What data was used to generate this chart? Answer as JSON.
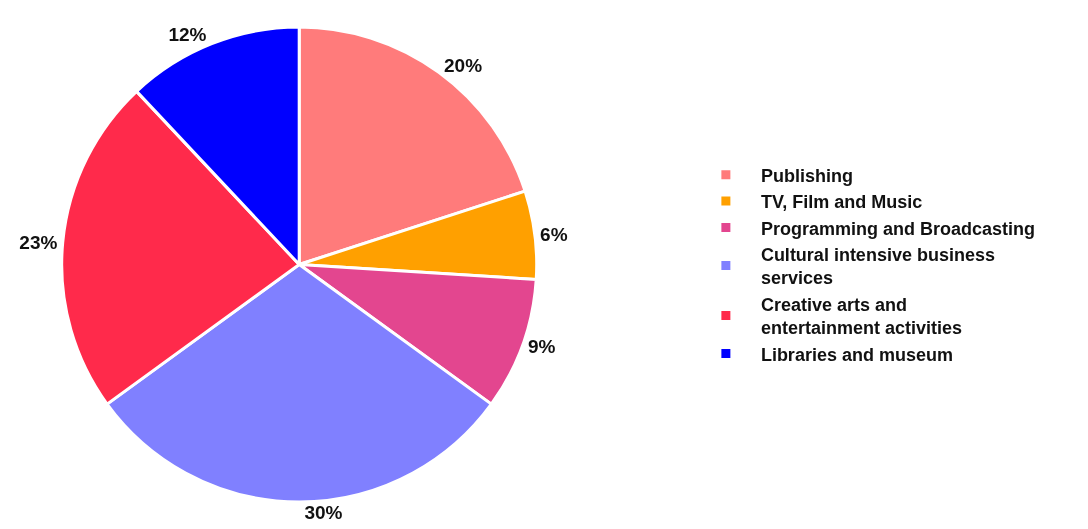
{
  "chart_data": {
    "type": "pie",
    "categories": [
      "Publishing",
      "TV, Film and Music",
      "Programming and Broadcasting",
      "Cultural intensive business services",
      "Creative arts and entertainment activities",
      "Libraries and museum"
    ],
    "values": [
      20,
      6,
      9,
      30,
      23,
      12
    ],
    "value_labels": [
      "20%",
      "6%",
      "9%",
      "30%",
      "23%",
      "12%"
    ],
    "colors": [
      "#ff7b7b",
      "#ffa000",
      "#e3468f",
      "#8080ff",
      "#ff2a4b",
      "#0000ff"
    ],
    "legend": "right"
  }
}
